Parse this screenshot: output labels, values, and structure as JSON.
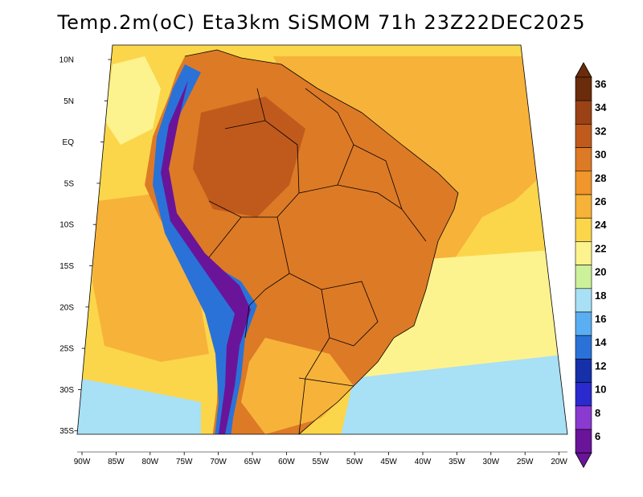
{
  "title": "Temp.2m(oC) Eta3km SiSMOM 71h 23Z22DEC2025",
  "lat_labels": [
    "10N",
    "5N",
    "EQ",
    "5S",
    "10S",
    "15S",
    "20S",
    "25S",
    "30S",
    "35S"
  ],
  "lon_labels": [
    "90W",
    "85W",
    "80W",
    "75W",
    "70W",
    "65W",
    "60W",
    "55W",
    "50W",
    "45W",
    "40W",
    "35W",
    "30W",
    "25W",
    "20W"
  ],
  "colorbar": {
    "labels": [
      "36",
      "34",
      "32",
      "30",
      "28",
      "26",
      "24",
      "22",
      "20",
      "18",
      "16",
      "14",
      "12",
      "10",
      "8",
      "6"
    ],
    "colors_high_to_low": [
      "#6a2c0a",
      "#9a4216",
      "#c05a1c",
      "#dd7a26",
      "#f0962c",
      "#f7b23a",
      "#fbd64a",
      "#fdf38e",
      "#cdf09a",
      "#a8e0f5",
      "#5aaef2",
      "#2a72d8",
      "#1530a8",
      "#2a2acf",
      "#8a3ad0",
      "#6a149a"
    ]
  },
  "fill_colors": {
    "ocean_warm": "#f7b23a",
    "ocean_mild": "#fbd64a",
    "ocean_cool": "#fdf38e",
    "ocean_cold": "#a8e0f5",
    "land_hot": "#dd7a26",
    "land_very_hot": "#c05a1c",
    "andes_cold": "#6a149a",
    "andes_mid": "#2a72d8"
  }
}
